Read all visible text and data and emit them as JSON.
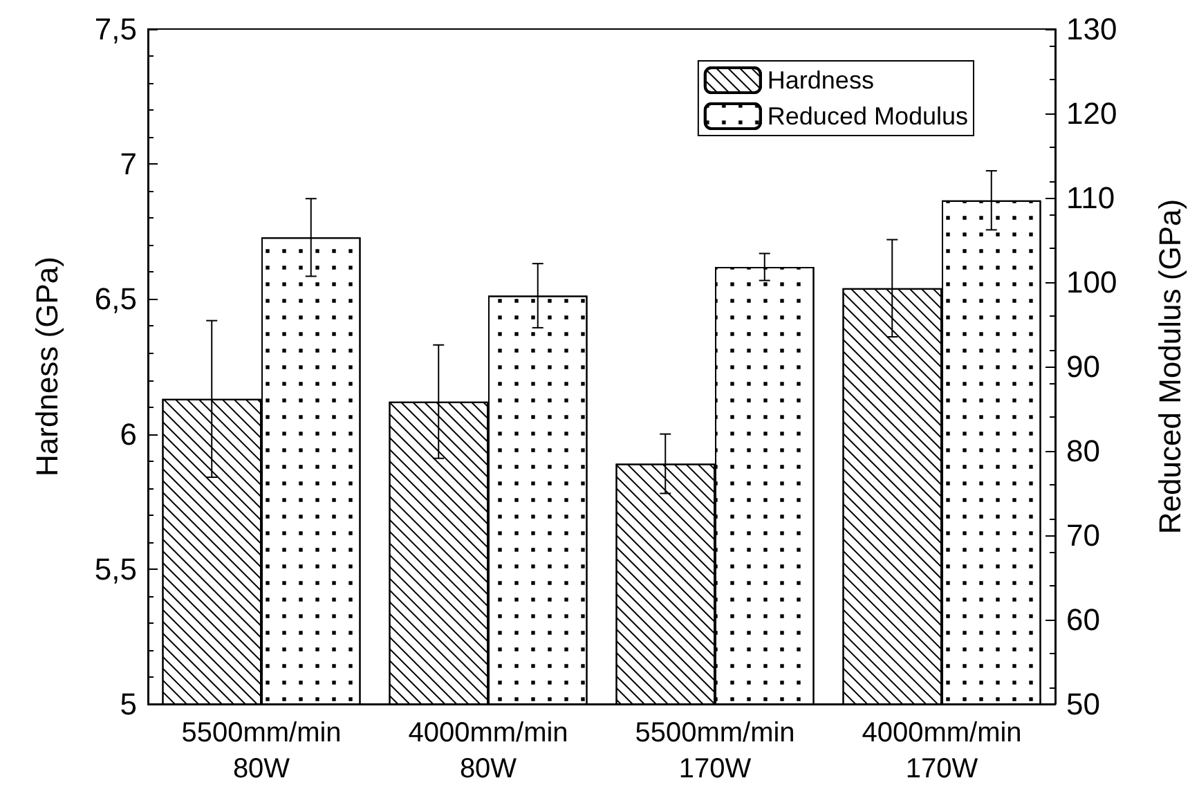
{
  "chart_data": {
    "type": "bar",
    "xlabel": null,
    "ylabel": "Hardness (GPa)",
    "y2label": "Reduced Modulus (GPa)",
    "categories": [
      "5500mm/min\n80W",
      "4000mm/min\n80W",
      "5500mm/min\n170W",
      "4000mm/min\n170W"
    ],
    "series": [
      {
        "name": "Hardness",
        "color": "#ffffff",
        "values": [
          6.13,
          6.12,
          5.89,
          6.54
        ],
        "errors": [
          0.29,
          0.21,
          0.11,
          0.18
        ]
      },
      {
        "name": "Reduced Modulus",
        "color": "#ffffff",
        "axis": "y2",
        "values": [
          105.3,
          98.4,
          101.8,
          109.7
        ],
        "errors": [
          4.6,
          3.8,
          1.6,
          3.5
        ]
      }
    ],
    "ylim": [
      5,
      7.5
    ],
    "yticks": [
      5,
      {
        "value": 5.5,
        "label": "5,5"
      },
      6,
      {
        "value": 6.5,
        "label": "6,5"
      },
      7,
      {
        "value": 7.5,
        "label": "7,5"
      }
    ],
    "y2lim": [
      50,
      130
    ],
    "y2ticks": [
      50,
      60,
      70,
      80,
      90,
      100,
      110,
      120,
      130
    ],
    "grid": false,
    "legend": "top right"
  }
}
